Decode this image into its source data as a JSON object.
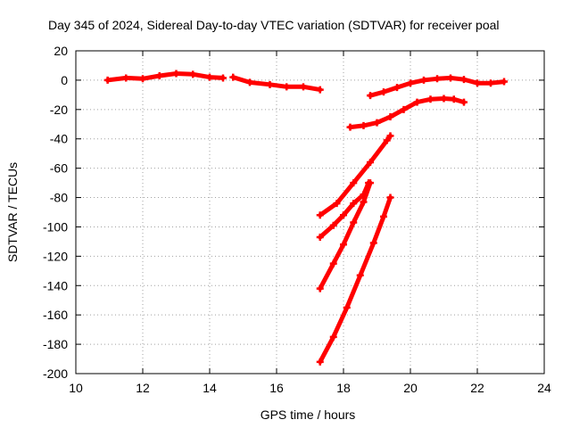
{
  "chart_data": {
    "type": "scatter",
    "title": "Day 345 of 2024, Sidereal Day-to-day VTEC variation (SDTVAR) for receiver poal",
    "xlabel": "GPS time / hours",
    "ylabel": "SDTVAR / TECUs",
    "xlim": [
      10,
      24
    ],
    "ylim": [
      -200,
      20
    ],
    "xticks": [
      10,
      12,
      14,
      16,
      18,
      20,
      22,
      24
    ],
    "yticks": [
      20,
      0,
      -20,
      -40,
      -60,
      -80,
      -100,
      -120,
      -140,
      -160,
      -180,
      -200
    ],
    "grid": true,
    "legend": "none",
    "color": "#ff0000",
    "series": [
      {
        "x": [
          10.95,
          11.5,
          12.0,
          12.5,
          13.0,
          13.5,
          14.0,
          14.4
        ],
        "y": [
          0,
          1.5,
          1,
          3,
          4.5,
          4,
          2,
          1.5
        ]
      },
      {
        "x": [
          14.7,
          15.2,
          15.8,
          16.3,
          16.8,
          17.3
        ],
        "y": [
          2,
          -1.5,
          -3,
          -4.5,
          -4.5,
          -6.5
        ]
      },
      {
        "x": [
          18.8,
          19.2,
          19.6,
          20.0,
          20.4,
          20.8,
          21.2,
          21.6,
          22.0,
          22.4,
          22.8
        ],
        "y": [
          -10.5,
          -8,
          -5,
          -2,
          0,
          1,
          1.5,
          0.5,
          -2,
          -2,
          -1
        ]
      },
      {
        "x": [
          18.2,
          18.6,
          19.0,
          19.4,
          19.8,
          20.2,
          20.6,
          21.0,
          21.3,
          21.6
        ],
        "y": [
          -32,
          -31,
          -29,
          -25,
          -20,
          -15,
          -13,
          -12.5,
          -13,
          -15
        ]
      },
      {
        "x": [
          17.3,
          17.8,
          18.3,
          18.8,
          19.3,
          19.4
        ],
        "y": [
          -92,
          -84,
          -70,
          -56,
          -41,
          -38
        ]
      },
      {
        "x": [
          17.3,
          17.7,
          18.0,
          18.3,
          18.6,
          18.75
        ],
        "y": [
          -107,
          -99,
          -92,
          -84,
          -78,
          -70
        ]
      },
      {
        "x": [
          17.3,
          17.7,
          18.0,
          18.3,
          18.6,
          18.8
        ],
        "y": [
          -142,
          -125,
          -112,
          -97,
          -83,
          -70
        ]
      },
      {
        "x": [
          17.3,
          17.7,
          18.1,
          18.5,
          18.9,
          19.2,
          19.4
        ],
        "y": [
          -192,
          -175,
          -155,
          -133,
          -111,
          -93,
          -80
        ]
      }
    ]
  }
}
